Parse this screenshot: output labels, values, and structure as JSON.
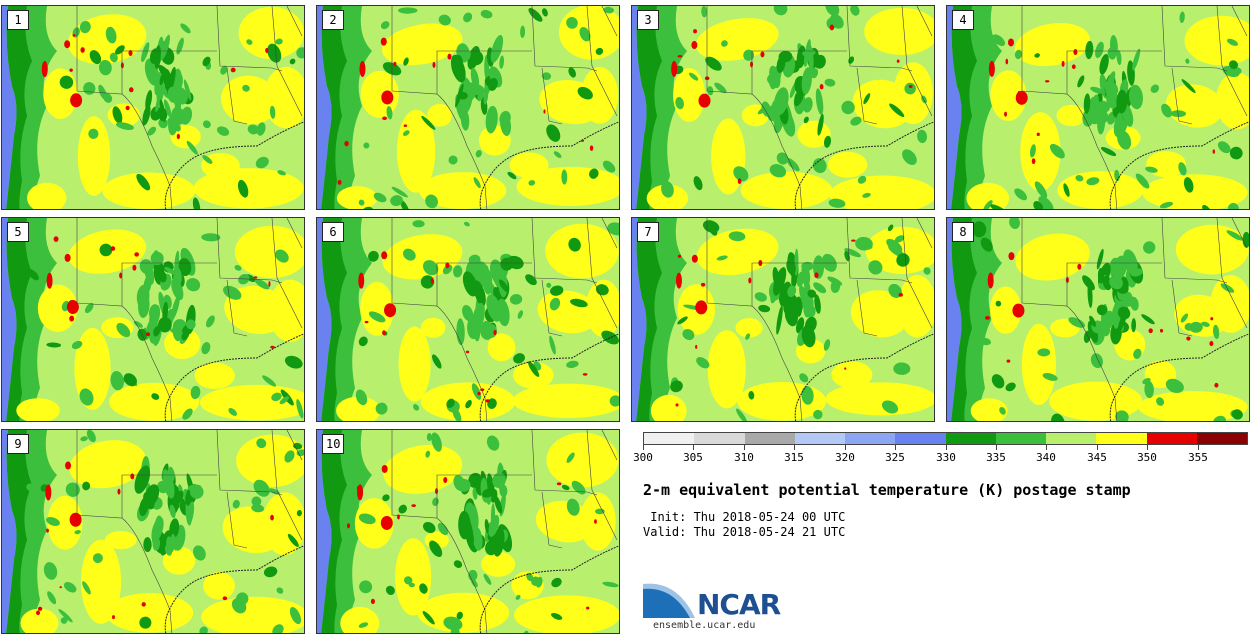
{
  "colors": {
    "water": "#6a82f0",
    "c330_335": "#119911",
    "c335_340": "#3cbf3c",
    "c340_345": "#b8f06e",
    "c345_350": "#ffff1a",
    "c350_355": "#e60000",
    "c355_plus": "#8b0000"
  },
  "panels": [
    {
      "label": "1"
    },
    {
      "label": "2"
    },
    {
      "label": "3"
    },
    {
      "label": "4"
    },
    {
      "label": "5"
    },
    {
      "label": "6"
    },
    {
      "label": "7"
    },
    {
      "label": "8"
    },
    {
      "label": "9"
    },
    {
      "label": "10"
    }
  ],
  "colorbar": {
    "colors": [
      "#f0f0f0",
      "#d9d9d9",
      "#a9a9a9",
      "#b3c8f5",
      "#8aa6f5",
      "#6a82f0",
      "#119911",
      "#3cbf3c",
      "#b8f06e",
      "#ffff1a",
      "#e60000",
      "#8b0000"
    ],
    "tick_labels": [
      "300",
      "305",
      "310",
      "315",
      "320",
      "325",
      "330",
      "335",
      "340",
      "345",
      "350",
      "355"
    ]
  },
  "title": "2-m equivalent potential temperature (K) postage stamp",
  "init_text": " Init: Thu 2018-05-24 00 UTC",
  "valid_text": "Valid: Thu 2018-05-24 21 UTC",
  "logo_text": "NCAR",
  "url": "ensemble.ucar.edu"
}
